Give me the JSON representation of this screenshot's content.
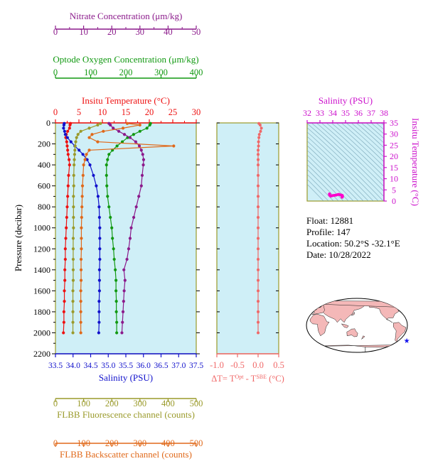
{
  "colors": {
    "nitrate": "#8b1a8b",
    "oxygen": "#119911",
    "temperature": "#ee1111",
    "salinity": "#1111cc",
    "fluorescence": "#9a9a2a",
    "backscatter": "#e0691a",
    "delta_t": "#f06868",
    "panel_bg": "#cfeff7",
    "panel_border": "#9a9a2a",
    "ts_label": "#cc11cc",
    "ts_points": "#ff00cc"
  },
  "chart_data": [
    {
      "type": "line",
      "panel": "profile",
      "ylabel": "Pressure (decibar)",
      "ylim": [
        2200,
        0
      ],
      "yticks": [
        0,
        200,
        400,
        600,
        800,
        1000,
        1200,
        1400,
        1600,
        1800,
        2000,
        2200
      ],
      "pressure": [
        5,
        20,
        50,
        80,
        110,
        140,
        180,
        220,
        260,
        300,
        350,
        400,
        500,
        600,
        700,
        800,
        900,
        1000,
        1100,
        1200,
        1300,
        1400,
        1500,
        1600,
        1700,
        1800,
        1900,
        2000
      ],
      "axes": {
        "nitrate": {
          "label": "Nitrate Concentration (μm/kg)",
          "xlim": [
            0,
            50
          ],
          "ticks": [
            0,
            10,
            20,
            30,
            40,
            50
          ]
        },
        "oxygen": {
          "label": "Optode Oxygen Concentration (μm/kg)",
          "xlim": [
            0,
            400
          ],
          "ticks": [
            0,
            100,
            200,
            300,
            400
          ]
        },
        "temperature": {
          "label": "Insitu Temperature (°C)",
          "xlim": [
            0,
            30
          ],
          "ticks": [
            0,
            5,
            10,
            15,
            20,
            25,
            30
          ]
        },
        "salinity": {
          "label": "Salinity (PSU)",
          "xlim": [
            33.5,
            37.5
          ],
          "ticks": [
            "33.5",
            "34.0",
            "34.5",
            "35.0",
            "35.5",
            "36.0",
            "36.5",
            "37.0",
            "37.5"
          ]
        },
        "fluorescence": {
          "label": "FLBB Fluorescence channel (counts)",
          "xlim": [
            0,
            500
          ],
          "ticks": [
            0,
            100,
            200,
            300,
            400,
            500
          ]
        },
        "backscatter": {
          "label": "FLBB Backscatter channel (counts)",
          "xlim": [
            0,
            500
          ],
          "ticks": [
            0,
            100,
            200,
            300,
            400,
            500
          ]
        }
      },
      "series": [
        {
          "key": "temperature",
          "values": [
            3.2,
            3.1,
            3.0,
            2.6,
            2.3,
            2.2,
            2.4,
            2.5,
            2.6,
            2.7,
            2.9,
            3.0,
            2.8,
            2.7,
            2.6,
            2.5,
            2.4,
            2.3,
            2.2,
            2.1,
            2.1,
            2.0,
            2.0,
            1.9,
            1.9,
            1.8,
            1.8,
            1.7
          ]
        },
        {
          "key": "salinity",
          "values": [
            33.75,
            33.74,
            33.73,
            33.76,
            33.78,
            33.84,
            33.94,
            34.05,
            34.17,
            34.28,
            34.4,
            34.48,
            34.58,
            34.66,
            34.71,
            34.74,
            34.75,
            34.76,
            34.76,
            34.76,
            34.76,
            34.75,
            34.75,
            34.75,
            34.74,
            34.74,
            34.74,
            34.73
          ]
        },
        {
          "key": "oxygen",
          "values": [
            270,
            268,
            260,
            240,
            222,
            205,
            190,
            175,
            162,
            152,
            148,
            145,
            145,
            146,
            148,
            152,
            156,
            160,
            162,
            165,
            167,
            170,
            172,
            172,
            173,
            173,
            174,
            174
          ]
        },
        {
          "key": "nitrate",
          "values": [
            19.0,
            19.5,
            20.5,
            22.5,
            24.5,
            26.5,
            28.5,
            29.8,
            30.5,
            31.0,
            31.3,
            31.2,
            30.8,
            30.5,
            29.6,
            28.7,
            27.8,
            26.9,
            26.5,
            26.0,
            25.4,
            24.3,
            24.7,
            24.4,
            24.2,
            24.0,
            23.8,
            23.6
          ]
        },
        {
          "key": "fluorescence",
          "values": [
            160,
            150,
            120,
            90,
            80,
            75,
            72,
            70,
            69,
            68,
            67,
            66,
            65,
            65,
            64,
            64,
            64,
            64,
            63,
            63,
            63,
            63,
            63,
            62,
            62,
            62,
            62,
            62
          ]
        },
        {
          "key": "backscatter",
          "values": [
            255,
            300,
            240,
            170,
            130,
            120,
            150,
            420,
            120,
            110,
            105,
            100,
            98,
            96,
            95,
            94,
            93,
            92,
            92,
            92,
            91,
            91,
            91,
            90,
            90,
            90,
            90,
            90
          ]
        }
      ]
    },
    {
      "type": "line",
      "panel": "delta_t",
      "xlabel": "ΔT= T<sup>Opt</sup> - T<sup>SBE</sup> (°C)",
      "xlim": [
        -1.0,
        0.5
      ],
      "xticks": [
        "-1.0",
        "-0.5",
        "0.0",
        "0.5"
      ],
      "ylim": [
        2200,
        0
      ],
      "pressure": [
        5,
        20,
        50,
        80,
        110,
        140,
        180,
        220,
        260,
        300,
        350,
        400,
        500,
        600,
        700,
        800,
        900,
        1000,
        1100,
        1200,
        1300,
        1400,
        1500,
        1600,
        1700,
        1800,
        1900,
        2000
      ],
      "values": [
        0.02,
        0.05,
        0.08,
        0.06,
        0.03,
        0.02,
        0.01,
        0.01,
        0.0,
        0.0,
        0.0,
        0.0,
        0.0,
        0.0,
        0.0,
        0.0,
        0.0,
        0.0,
        0.0,
        0.0,
        0.0,
        0.0,
        0.0,
        0.0,
        0.0,
        0.0,
        0.0,
        0.0
      ]
    },
    {
      "type": "scatter",
      "panel": "ts",
      "title": "Salinity (PSU)",
      "ylabel": "Insitu Temperature (°C)",
      "xlim": [
        32,
        38
      ],
      "xticks": [
        32,
        33,
        34,
        35,
        36,
        37,
        38
      ],
      "ylim": [
        0,
        35
      ],
      "yticks": [
        0,
        5,
        10,
        15,
        20,
        25,
        30,
        35
      ],
      "points": [
        [
          33.75,
          3.2
        ],
        [
          33.74,
          3.1
        ],
        [
          33.76,
          2.6
        ],
        [
          33.84,
          2.2
        ],
        [
          33.94,
          2.4
        ],
        [
          34.05,
          2.5
        ],
        [
          34.17,
          2.6
        ],
        [
          34.28,
          2.7
        ],
        [
          34.4,
          2.9
        ],
        [
          34.48,
          3.0
        ],
        [
          34.58,
          2.8
        ],
        [
          34.66,
          2.7
        ],
        [
          34.71,
          2.6
        ],
        [
          34.74,
          2.5
        ],
        [
          34.75,
          2.4
        ],
        [
          34.76,
          2.3
        ],
        [
          34.76,
          2.1
        ],
        [
          34.75,
          2.0
        ],
        [
          34.75,
          1.9
        ],
        [
          34.74,
          1.8
        ],
        [
          34.73,
          1.7
        ]
      ]
    }
  ],
  "info": {
    "float": "Float:  12881",
    "profile": "Profile:  147",
    "location": "Location:  50.2°S  -32.1°E",
    "date": "Date:  10/28/2022"
  },
  "map": {
    "marker_lon": -32.1,
    "marker_lat": -50.2
  }
}
